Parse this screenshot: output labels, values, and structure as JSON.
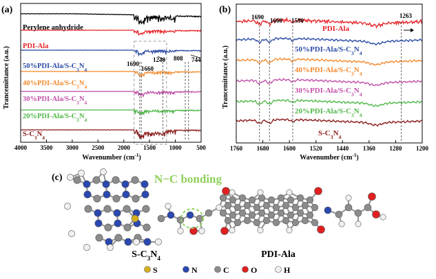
{
  "panel_labels": {
    "a": "(a)",
    "b": "(b)",
    "c": "(c)"
  },
  "chart_data": [
    {
      "type": "line",
      "panel": "(a)",
      "xlabel_main": "Wavenumber (cm",
      "xlabel_sup": "-1",
      "xlabel_end": ")",
      "ylabel": "Trancemittance (a.u.)",
      "xlim": [
        4000,
        500
      ],
      "xticks": [
        "4000",
        "3500",
        "3000",
        "2500",
        "2000",
        "1500",
        "1000",
        "500"
      ],
      "series": [
        {
          "name": "Perylene anhydride",
          "color": "#000000"
        },
        {
          "name": "PDI-Ala",
          "color": "#e8242a"
        },
        {
          "name": "50%PDI-Ala/S-C3N4",
          "main": "50%PDI-Ala/S-C",
          "s1": "3",
          "mid": "N",
          "s2": "4",
          "color": "#2b4ba6"
        },
        {
          "name": "40%PDI-Ala/S-C3N4",
          "main": "40%PDI-Ala/S-C",
          "s1": "3",
          "mid": "N",
          "s2": "4",
          "color": "#f28a2e"
        },
        {
          "name": "30%PDI-Ala/S-C3N4",
          "main": "30%PDI-Ala/S-C",
          "s1": "3",
          "mid": "N",
          "s2": "4",
          "color": "#c14fa8"
        },
        {
          "name": "20%PDI-Ala/S-C3N4",
          "main": "20%PDI-Ala/S-C",
          "s1": "3",
          "mid": "N",
          "s2": "4",
          "color": "#4fb848"
        },
        {
          "name": "S-C3N4",
          "main": "S-C",
          "s1": "3",
          "mid": "N",
          "s2": "4",
          "color": "#8b1a1a"
        }
      ],
      "annotations": [
        "1690",
        "1660",
        "1240",
        "808",
        "744"
      ],
      "annotation_positions": [
        1690,
        1660,
        1240,
        808,
        744
      ]
    },
    {
      "type": "line",
      "panel": "(b)",
      "xlabel_main": "Wavenumber (cm",
      "xlabel_sup": "-1",
      "xlabel_end": ")",
      "ylabel": "Trancemittance (a.u.)",
      "xlim": [
        1760,
        1200
      ],
      "xticks": [
        "1760",
        "1680",
        "1600",
        "1520",
        "1440",
        "1360",
        "1280",
        "1200"
      ],
      "series": [
        {
          "name": "PDI-Ala",
          "color": "#e8242a"
        },
        {
          "name": "50%PDI-Ala/S-C3N4",
          "main": "50%PDI-Ala/S-C",
          "s1": "3",
          "mid": "N",
          "s2": "4",
          "color": "#2b4ba6"
        },
        {
          "name": "40%PDI-Ala/S-C3N4",
          "main": "40%PDI-Ala/S-C",
          "s1": "3",
          "mid": "N",
          "s2": "4",
          "color": "#f28a2e"
        },
        {
          "name": "30%PDI-Ala/S-C3N4",
          "main": "30%PDI-Ala/S-C",
          "s1": "3",
          "mid": "N",
          "s2": "4",
          "color": "#c14fa8"
        },
        {
          "name": "20%PDI-Ala/S-C3N4",
          "main": "20%PDI-Ala/S-C",
          "s1": "3",
          "mid": "N",
          "s2": "4",
          "color": "#4fb848"
        },
        {
          "name": "S-C3N4",
          "main": "S-C",
          "s1": "3",
          "mid": "N",
          "s2": "4",
          "color": "#8b1a1a"
        }
      ],
      "annotations": [
        "1690",
        "1660",
        "1590",
        "1263"
      ],
      "annotation_positions": [
        1690,
        1660,
        1590,
        1263
      ]
    }
  ],
  "molecule_panel": {
    "title": "N−C bonding",
    "title_color": "#8fd05a",
    "label_left_main": "S-C",
    "label_left_s1": "3",
    "label_left_mid": "N",
    "label_left_s2": "4",
    "label_right": "PDI-Ala",
    "legend": [
      {
        "symbol": "S",
        "color": "#d4b01e"
      },
      {
        "symbol": "N",
        "color": "#2b48b0"
      },
      {
        "symbol": "C",
        "color": "#8c8c8c"
      },
      {
        "symbol": "O",
        "color": "#e02020"
      },
      {
        "symbol": "H",
        "color": "#f0f0f0"
      }
    ]
  }
}
